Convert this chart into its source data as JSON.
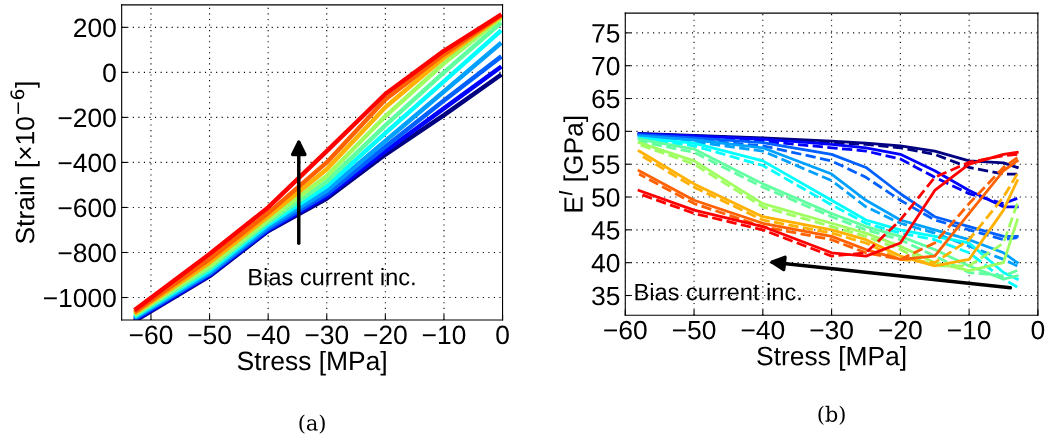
{
  "chart_data": [
    {
      "type": "line",
      "xlabel": "Stress [MPa]",
      "ylabel": "Strain [×10$^{−6}$]",
      "xlim": [
        -65,
        0
      ],
      "ylim": [
        -1100,
        300
      ],
      "xticks": [
        -60,
        -50,
        -40,
        -30,
        -20,
        -10,
        0
      ],
      "yticks": [
        -1000,
        -800,
        -600,
        -400,
        -200,
        0,
        200
      ],
      "grid": true,
      "line_style": "solid",
      "annotations": [
        "Bias current inc.",
        "(a)"
      ],
      "x": [
        -62.5,
        -50,
        -40,
        -30,
        -20,
        -10,
        -0.5
      ],
      "series": [
        {
          "color": "#000080",
          "values": [
            -1100,
            -905,
            -705,
            -560,
            -365,
            -190,
            -15
          ]
        },
        {
          "color": "#0000ff",
          "values": [
            -1095,
            -900,
            -700,
            -550,
            -350,
            -160,
            20
          ]
        },
        {
          "color": "#0060ff",
          "values": [
            -1090,
            -895,
            -695,
            -540,
            -330,
            -125,
            65
          ]
        },
        {
          "color": "#00a0ff",
          "values": [
            -1085,
            -890,
            -685,
            -525,
            -305,
            -85,
            125
          ]
        },
        {
          "color": "#00ffff",
          "values": [
            -1080,
            -880,
            -675,
            -505,
            -270,
            -40,
            180
          ]
        },
        {
          "color": "#60ffa0",
          "values": [
            -1075,
            -870,
            -665,
            -485,
            -235,
            0,
            215
          ]
        },
        {
          "color": "#a0ff60",
          "values": [
            -1070,
            -860,
            -655,
            -460,
            -195,
            40,
            235
          ]
        },
        {
          "color": "#ffb000",
          "values": [
            -1065,
            -845,
            -640,
            -430,
            -155,
            65,
            245
          ]
        },
        {
          "color": "#ff6000",
          "values": [
            -1060,
            -830,
            -625,
            -400,
            -120,
            80,
            250
          ]
        },
        {
          "color": "#ff0000",
          "values": [
            -1050,
            -807,
            -600,
            -350,
            -96,
            96,
            252
          ]
        }
      ]
    },
    {
      "type": "line",
      "xlabel": "Stress [MPa]",
      "ylabel": "E$^{I}$ [GPa]",
      "xlim": [
        -60,
        0
      ],
      "ylim": [
        32,
        78
      ],
      "xticks": [
        -60,
        -50,
        -40,
        -30,
        -20,
        -10,
        0
      ],
      "yticks": [
        35,
        40,
        45,
        50,
        55,
        60,
        65,
        70,
        75
      ],
      "grid": true,
      "annotations": [
        "Bias current inc.",
        "(b)"
      ],
      "x": [
        -58,
        -50,
        -40,
        -30,
        -25,
        -20,
        -15,
        -10,
        -5,
        -3
      ],
      "series": [
        {
          "color": "#000080",
          "line_style": "solid",
          "values": [
            59.7,
            59.4,
            59,
            58.5,
            58.2,
            57.8,
            57,
            55.5,
            55.2,
            54.5
          ]
        },
        {
          "color": "#000080",
          "line_style": "dashed",
          "values": [
            59.6,
            59.3,
            58.9,
            58.3,
            58,
            57.5,
            56.5,
            54.5,
            53.5,
            53.5
          ]
        },
        {
          "color": "#0000ff",
          "line_style": "solid",
          "values": [
            59.6,
            59.3,
            58.8,
            58,
            57.5,
            56.5,
            54,
            51,
            48.5,
            48.5
          ]
        },
        {
          "color": "#0000ff",
          "line_style": "dashed",
          "values": [
            59.5,
            59.1,
            58.5,
            57.5,
            57,
            55.8,
            53,
            50.5,
            49,
            49.8
          ]
        },
        {
          "color": "#0060ff",
          "line_style": "solid",
          "values": [
            59.5,
            59,
            58.3,
            56.5,
            54.5,
            50.5,
            47,
            45.5,
            44,
            44
          ]
        },
        {
          "color": "#0060ff",
          "line_style": "dashed",
          "values": [
            59.3,
            58.7,
            57.8,
            55.5,
            53,
            49.5,
            46.5,
            45,
            43.5,
            43.8
          ]
        },
        {
          "color": "#00a0ff",
          "line_style": "solid",
          "values": [
            59.3,
            58.7,
            57.5,
            53.5,
            49.5,
            46.5,
            45,
            43.5,
            41.5,
            40
          ]
        },
        {
          "color": "#00a0ff",
          "line_style": "dashed",
          "values": [
            59.1,
            58.4,
            57,
            52.5,
            48.5,
            46,
            44.5,
            42.5,
            40.5,
            39.5
          ]
        },
        {
          "color": "#00ffff",
          "line_style": "solid",
          "values": [
            59,
            58.2,
            55.5,
            49.5,
            46.5,
            45,
            44,
            43,
            38.5,
            37.5
          ]
        },
        {
          "color": "#00ffff",
          "line_style": "dashed",
          "values": [
            58.8,
            57.8,
            54.8,
            48.8,
            46,
            44.5,
            43.5,
            41.5,
            37.5,
            36.3
          ]
        },
        {
          "color": "#60ffa0",
          "line_style": "solid",
          "values": [
            58.8,
            57.3,
            52,
            47.5,
            45.5,
            44,
            42,
            39.5,
            37.5,
            38
          ]
        },
        {
          "color": "#60ffa0",
          "line_style": "dashed",
          "values": [
            58.5,
            56.8,
            51.5,
            47,
            45,
            43.5,
            41,
            38.5,
            38,
            38.8
          ]
        },
        {
          "color": "#a0ff60",
          "line_style": "solid",
          "values": [
            58.3,
            55.5,
            49,
            46,
            44.5,
            42.5,
            40,
            38.8,
            40,
            46.5
          ]
        },
        {
          "color": "#a0ff60",
          "line_style": "dashed",
          "values": [
            58,
            55,
            48.5,
            45.5,
            44,
            42,
            39.5,
            39.5,
            43,
            49
          ]
        },
        {
          "color": "#ffb000",
          "line_style": "solid",
          "values": [
            57,
            52,
            47,
            45,
            43.5,
            41,
            39.5,
            40.5,
            48,
            52.5
          ]
        },
        {
          "color": "#ffb000",
          "line_style": "dashed",
          "values": [
            56.5,
            51.5,
            46.5,
            44.5,
            43,
            40.5,
            40,
            43.5,
            50,
            53.5
          ]
        },
        {
          "color": "#ff6000",
          "line_style": "solid",
          "values": [
            54,
            49.5,
            46,
            44,
            42,
            40.5,
            41,
            47.5,
            54,
            55.5
          ]
        },
        {
          "color": "#ff6000",
          "line_style": "dashed",
          "values": [
            53.5,
            49,
            45.5,
            43.5,
            41.5,
            40.5,
            43,
            49,
            54.5,
            56
          ]
        },
        {
          "color": "#ff0000",
          "line_style": "solid",
          "values": [
            51,
            48,
            45.5,
            41.5,
            41,
            43,
            51,
            55,
            56.5,
            56.8
          ]
        },
        {
          "color": "#ff0000",
          "line_style": "dashed",
          "values": [
            50.5,
            47.5,
            45,
            41,
            41.5,
            46.5,
            53,
            55.3,
            56.3,
            56.5
          ]
        }
      ]
    }
  ]
}
